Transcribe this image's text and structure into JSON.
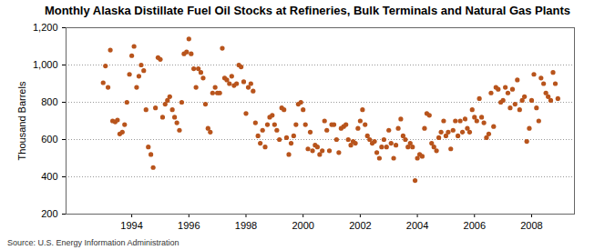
{
  "chart_data": {
    "type": "scatter",
    "title": "Monthly Alaska Distillate Fuel Oil Stocks at Refineries, Bulk Terminals and Natural Gas Plants",
    "y_label": "Thousand Barrels",
    "caption": "Source: U.S. Energy Information Administration",
    "color": "#b8541c",
    "marker": "circle",
    "grid": true,
    "xlim": [
      1991.7,
      2009.5
    ],
    "xticks": [
      1994,
      1996,
      1998,
      2000,
      2002,
      2004,
      2006,
      2008
    ],
    "ylim": [
      200,
      1200
    ],
    "yticks": [
      200,
      400,
      600,
      800,
      {
        "value": 1000,
        "label": "1,000"
      },
      {
        "value": 1200,
        "label": "1,200"
      }
    ],
    "x": [
      1993.0,
      1993.08,
      1993.17,
      1993.25,
      1993.33,
      1993.42,
      1993.5,
      1993.58,
      1993.67,
      1993.75,
      1993.83,
      1993.92,
      1994.0,
      1994.08,
      1994.17,
      1994.25,
      1994.33,
      1994.42,
      1994.5,
      1994.58,
      1994.67,
      1994.75,
      1994.83,
      1994.92,
      1995.0,
      1995.08,
      1995.17,
      1995.25,
      1995.33,
      1995.42,
      1995.5,
      1995.58,
      1995.67,
      1995.75,
      1995.83,
      1995.92,
      1996.0,
      1996.08,
      1996.17,
      1996.25,
      1996.33,
      1996.42,
      1996.5,
      1996.58,
      1996.67,
      1996.75,
      1996.83,
      1996.92,
      1997.0,
      1997.08,
      1997.17,
      1997.25,
      1997.33,
      1997.42,
      1997.5,
      1997.58,
      1997.67,
      1997.75,
      1997.83,
      1997.92,
      1998.0,
      1998.08,
      1998.17,
      1998.25,
      1998.33,
      1998.42,
      1998.5,
      1998.58,
      1998.67,
      1998.75,
      1998.83,
      1998.92,
      1999.0,
      1999.08,
      1999.17,
      1999.25,
      1999.33,
      1999.42,
      1999.5,
      1999.58,
      1999.67,
      1999.75,
      1999.83,
      1999.92,
      2000.0,
      2000.08,
      2000.17,
      2000.25,
      2000.33,
      2000.42,
      2000.5,
      2000.58,
      2000.67,
      2000.75,
      2000.83,
      2000.92,
      2001.0,
      2001.08,
      2001.17,
      2001.25,
      2001.33,
      2001.42,
      2001.5,
      2001.58,
      2001.67,
      2001.75,
      2001.83,
      2001.92,
      2002.0,
      2002.08,
      2002.17,
      2002.25,
      2002.33,
      2002.42,
      2002.5,
      2002.58,
      2002.67,
      2002.75,
      2002.83,
      2002.92,
      2003.0,
      2003.08,
      2003.17,
      2003.25,
      2003.33,
      2003.42,
      2003.5,
      2003.58,
      2003.67,
      2003.75,
      2003.83,
      2003.92,
      2004.0,
      2004.08,
      2004.17,
      2004.25,
      2004.33,
      2004.42,
      2004.5,
      2004.58,
      2004.67,
      2004.75,
      2004.83,
      2004.92,
      2005.0,
      2005.08,
      2005.17,
      2005.25,
      2005.33,
      2005.42,
      2005.5,
      2005.58,
      2005.67,
      2005.75,
      2005.83,
      2005.92,
      2006.0,
      2006.08,
      2006.17,
      2006.25,
      2006.33,
      2006.42,
      2006.5,
      2006.58,
      2006.67,
      2006.75,
      2006.83,
      2006.92,
      2007.0,
      2007.08,
      2007.17,
      2007.25,
      2007.33,
      2007.42,
      2007.5,
      2007.58,
      2007.67,
      2007.75,
      2007.83,
      2007.92,
      2008.0,
      2008.08,
      2008.17,
      2008.25,
      2008.33,
      2008.42,
      2008.5,
      2008.58,
      2008.67,
      2008.75,
      2008.83,
      2008.92
    ],
    "values": [
      905,
      995,
      880,
      1080,
      700,
      695,
      705,
      630,
      640,
      680,
      800,
      950,
      1050,
      1100,
      880,
      940,
      1000,
      970,
      760,
      560,
      520,
      450,
      770,
      1040,
      1030,
      720,
      790,
      810,
      830,
      760,
      720,
      690,
      650,
      800,
      1060,
      1070,
      1140,
      1060,
      980,
      880,
      980,
      960,
      930,
      790,
      660,
      640,
      850,
      880,
      850,
      850,
      1090,
      930,
      920,
      900,
      940,
      890,
      900,
      1000,
      990,
      910,
      740,
      880,
      900,
      860,
      690,
      620,
      580,
      650,
      560,
      680,
      720,
      730,
      680,
      650,
      600,
      770,
      760,
      610,
      520,
      580,
      620,
      680,
      790,
      800,
      760,
      680,
      550,
      640,
      540,
      570,
      560,
      520,
      540,
      700,
      650,
      540,
      680,
      680,
      600,
      530,
      660,
      670,
      680,
      600,
      570,
      590,
      580,
      660,
      700,
      760,
      680,
      620,
      600,
      580,
      590,
      530,
      500,
      560,
      600,
      560,
      650,
      580,
      500,
      570,
      660,
      710,
      620,
      600,
      560,
      580,
      560,
      380,
      500,
      520,
      510,
      660,
      740,
      730,
      580,
      560,
      540,
      610,
      640,
      700,
      620,
      640,
      550,
      650,
      700,
      620,
      700,
      640,
      710,
      660,
      640,
      760,
      720,
      700,
      820,
      720,
      690,
      610,
      630,
      850,
      670,
      880,
      870,
      800,
      810,
      880,
      850,
      770,
      870,
      790,
      920,
      760,
      810,
      830,
      590,
      660,
      810,
      950,
      770,
      700,
      930,
      900,
      850,
      830,
      810,
      960,
      900,
      820
    ]
  }
}
